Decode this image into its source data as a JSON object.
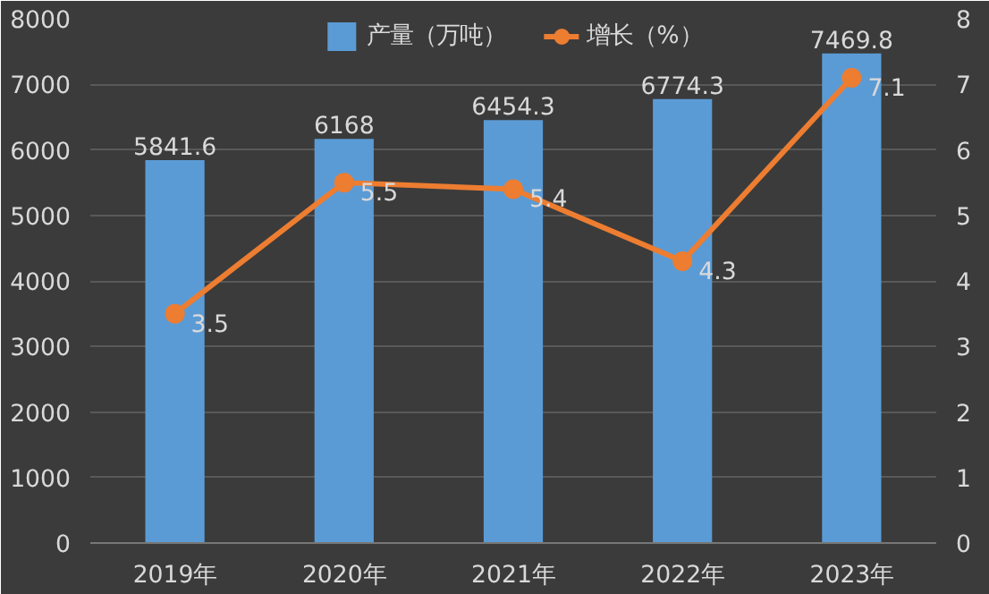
{
  "chart_data": {
    "type": "bar",
    "categories": [
      "2019年",
      "2020年",
      "2021年",
      "2022年",
      "2023年"
    ],
    "series": [
      {
        "name": "产量（万吨）",
        "color": "#5b9bd5",
        "values": [
          5841.6,
          6168,
          6454.3,
          6774.3,
          7469.8
        ]
      },
      {
        "name": "增长（%）",
        "type": "line",
        "axis": "y2",
        "color": "#ed7d31",
        "marker": "circle",
        "values": [
          3.5,
          5.5,
          5.4,
          4.3,
          7.1
        ]
      }
    ],
    "ylim": [
      0,
      8000
    ],
    "yticks": [
      0,
      1000,
      2000,
      3000,
      4000,
      5000,
      6000,
      7000,
      8000
    ],
    "y2lim": [
      0,
      8
    ],
    "y2ticks": [
      0,
      1,
      2,
      3,
      4,
      5,
      6,
      7,
      8
    ],
    "grid": "y",
    "legend": "top",
    "data_labels": true
  }
}
